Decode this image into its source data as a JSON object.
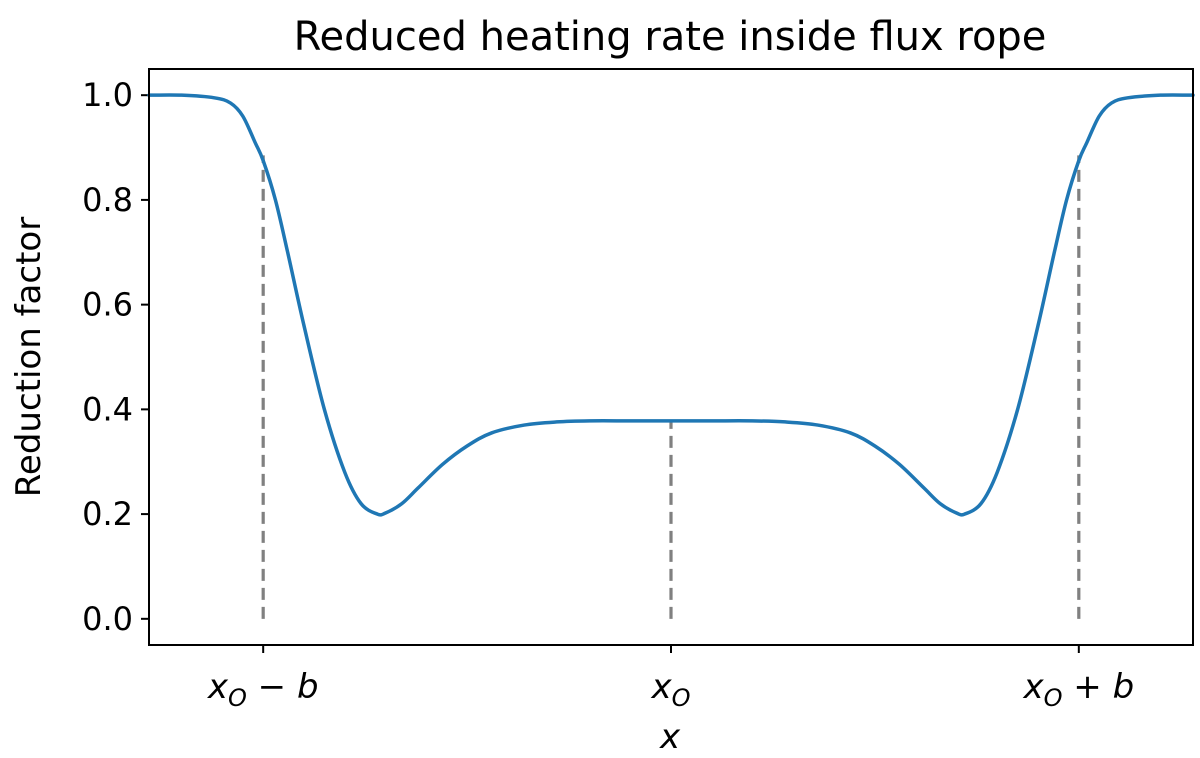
{
  "chart_data": {
    "type": "line",
    "title": "Reduced heating rate inside flux rope",
    "xlabel": "x",
    "ylabel": "Reduction factor",
    "xlim": [
      -1.28,
      1.28
    ],
    "ylim": [
      -0.05,
      1.05
    ],
    "yticks": [
      0.0,
      0.2,
      0.4,
      0.6,
      0.8,
      1.0
    ],
    "ytick_labels": [
      "0.0",
      "0.2",
      "0.4",
      "0.6",
      "0.8",
      "1.0"
    ],
    "xticks": [
      {
        "x": -1.0,
        "label_main": "x",
        "label_sub": "O",
        "label_tail": " − b"
      },
      {
        "x": 0.0,
        "label_main": "x",
        "label_sub": "O",
        "label_tail": ""
      },
      {
        "x": 1.0,
        "label_main": "x",
        "label_sub": "O",
        "label_tail": " + b"
      }
    ],
    "grid": false,
    "series": [
      {
        "color": "#1f77b4",
        "x": [
          -1.28,
          -1.2,
          -1.12,
          -1.08,
          -1.05,
          -1.02,
          -1.0,
          -0.97,
          -0.94,
          -0.9,
          -0.85,
          -0.8,
          -0.76,
          -0.72,
          -0.7,
          -0.66,
          -0.62,
          -0.56,
          -0.5,
          -0.44,
          -0.36,
          -0.28,
          -0.2,
          -0.1,
          0.0,
          0.1,
          0.2,
          0.28,
          0.36,
          0.44,
          0.5,
          0.56,
          0.62,
          0.66,
          0.7,
          0.72,
          0.76,
          0.8,
          0.85,
          0.9,
          0.94,
          0.97,
          1.0,
          1.02,
          1.05,
          1.08,
          1.12,
          1.2,
          1.28
        ],
        "y": [
          1.0,
          1.0,
          0.995,
          0.985,
          0.96,
          0.91,
          0.875,
          0.8,
          0.7,
          0.56,
          0.4,
          0.28,
          0.22,
          0.2,
          0.202,
          0.22,
          0.25,
          0.295,
          0.33,
          0.355,
          0.37,
          0.376,
          0.378,
          0.378,
          0.378,
          0.378,
          0.378,
          0.376,
          0.37,
          0.355,
          0.33,
          0.295,
          0.25,
          0.22,
          0.202,
          0.2,
          0.22,
          0.28,
          0.4,
          0.56,
          0.7,
          0.8,
          0.875,
          0.91,
          0.96,
          0.985,
          0.995,
          1.0,
          1.0
        ]
      }
    ],
    "markers": [
      {
        "x": -1.0,
        "y_top": 0.885,
        "color": "#808080"
      },
      {
        "x": 0.0,
        "y_top": 0.375,
        "color": "#808080"
      },
      {
        "x": 1.0,
        "y_top": 0.885,
        "color": "#808080"
      }
    ]
  }
}
